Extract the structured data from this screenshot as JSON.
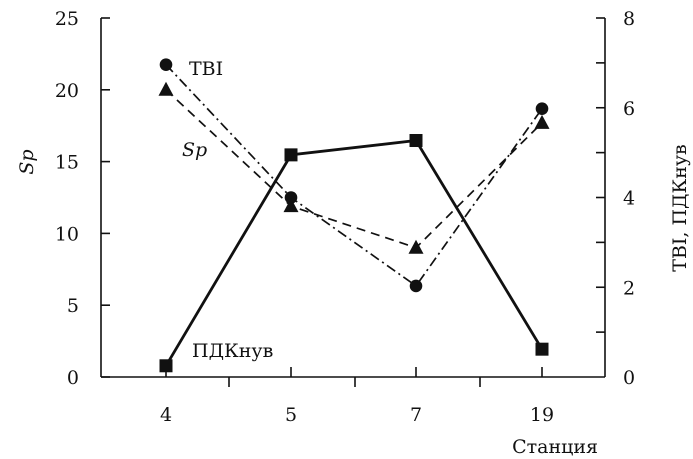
{
  "chart_data": {
    "type": "line",
    "categories": [
      "4",
      "5",
      "7",
      "19"
    ],
    "xlabel": "Станция",
    "ylabel_left": "Sp",
    "ylabel_right": "TBI, ПДКнув",
    "ylim_left": [
      0,
      25
    ],
    "yticks_left": [
      "0",
      "5",
      "10",
      "15",
      "20",
      "25"
    ],
    "ylim_right": [
      0,
      8
    ],
    "yticks_right": [
      "0",
      "2",
      "4",
      "6",
      "8"
    ],
    "grid": false,
    "legend": "inline labels",
    "series": [
      {
        "name": "ПДКнув",
        "axis": "right",
        "marker": "square",
        "line_style": "solid",
        "values": [
          0.25,
          4.95,
          5.27,
          0.62
        ]
      },
      {
        "name": "TBI",
        "axis": "right",
        "marker": "circle",
        "line_style": "dash-dot",
        "values": [
          6.96,
          4.0,
          2.03,
          5.98
        ]
      },
      {
        "name": "Sp",
        "axis": "left",
        "marker": "triangle",
        "line_style": "dashed",
        "values": [
          20.0,
          11.9,
          9.0,
          17.7
        ]
      }
    ]
  }
}
